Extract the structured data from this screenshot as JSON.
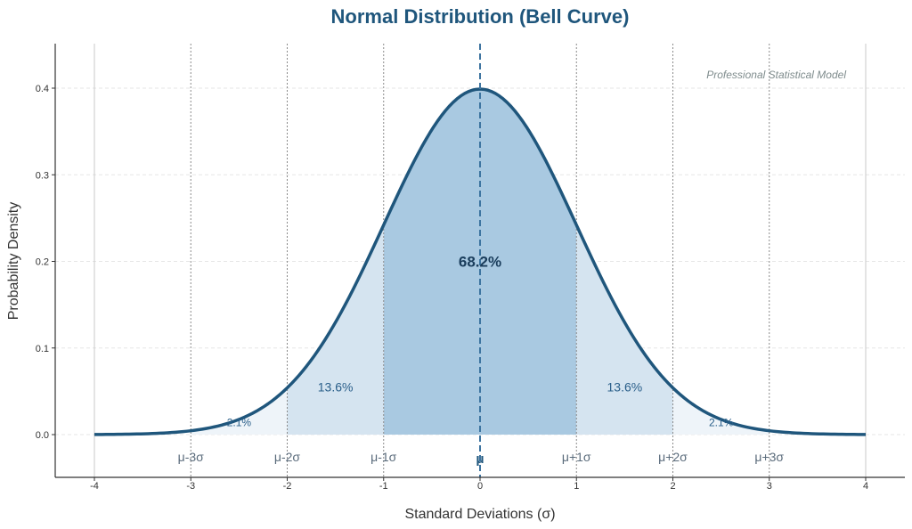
{
  "chart_data": {
    "type": "line",
    "title": "Normal Distribution (Bell Curve)",
    "xlabel": "Standard Deviations (σ)",
    "ylabel": "Probability Density",
    "xlim": [
      -4,
      4
    ],
    "ylim": [
      -0.05,
      0.45
    ],
    "xticks": [
      -4,
      -3,
      -2,
      -1,
      0,
      1,
      2,
      3,
      4
    ],
    "xtick_labels": [
      "-4",
      "-3",
      "-2",
      "-1",
      "0",
      "1",
      "2",
      "3",
      "4"
    ],
    "yticks": [
      0.0,
      0.1,
      0.2,
      0.3,
      0.4
    ],
    "ytick_labels": [
      "0.0",
      "0.1",
      "0.2",
      "0.3",
      "0.4"
    ],
    "grid": true,
    "series": [
      {
        "distribution": "normal",
        "mean": 0,
        "std": 1,
        "x": [
          -4,
          -3.5,
          -3,
          -2.5,
          -2,
          -1.5,
          -1,
          -0.5,
          0,
          0.5,
          1,
          1.5,
          2,
          2.5,
          3,
          3.5,
          4
        ],
        "y": [
          0.0001,
          0.0009,
          0.0044,
          0.0175,
          0.054,
          0.1295,
          0.242,
          0.3521,
          0.3989,
          0.3521,
          0.242,
          0.1295,
          0.054,
          0.0175,
          0.0044,
          0.0009,
          0.0001
        ],
        "color": "#1f567c"
      }
    ],
    "shaded_regions": [
      {
        "from": -1,
        "to": 1,
        "color": "#a9c9e1"
      },
      {
        "from": -2,
        "to": -1,
        "color": "#d5e4f0"
      },
      {
        "from": 1,
        "to": 2,
        "color": "#d5e4f0"
      },
      {
        "from": -3,
        "to": -2,
        "color": "#eef4f9"
      },
      {
        "from": 2,
        "to": 3,
        "color": "#eef4f9"
      }
    ],
    "mean_line": {
      "x": 0,
      "color": "#3d74a0"
    },
    "sigma_lines": [
      -4,
      -3,
      -2,
      -1,
      1,
      2,
      3,
      4
    ],
    "sigma_labels": [
      {
        "x": -3,
        "text": "μ-3σ"
      },
      {
        "x": -2,
        "text": "μ-2σ"
      },
      {
        "x": -1,
        "text": "μ-1σ"
      },
      {
        "x": 0,
        "text": "μ"
      },
      {
        "x": 1,
        "text": "μ+1σ"
      },
      {
        "x": 2,
        "text": "μ+2σ"
      },
      {
        "x": 3,
        "text": "μ+3σ"
      }
    ],
    "annotations": [
      {
        "x": 0,
        "y": 0.2,
        "text": "68.2%",
        "style": "center"
      },
      {
        "x": -1.5,
        "y": 0.05,
        "text": "13.6%",
        "style": "mid"
      },
      {
        "x": 1.5,
        "y": 0.05,
        "text": "13.6%",
        "style": "mid"
      },
      {
        "x": -2.5,
        "y": 0.01,
        "text": "2.1%",
        "style": "tail"
      },
      {
        "x": 2.5,
        "y": 0.01,
        "text": "2.1%",
        "style": "tail"
      }
    ],
    "watermark": "Professional Statistical Model"
  }
}
